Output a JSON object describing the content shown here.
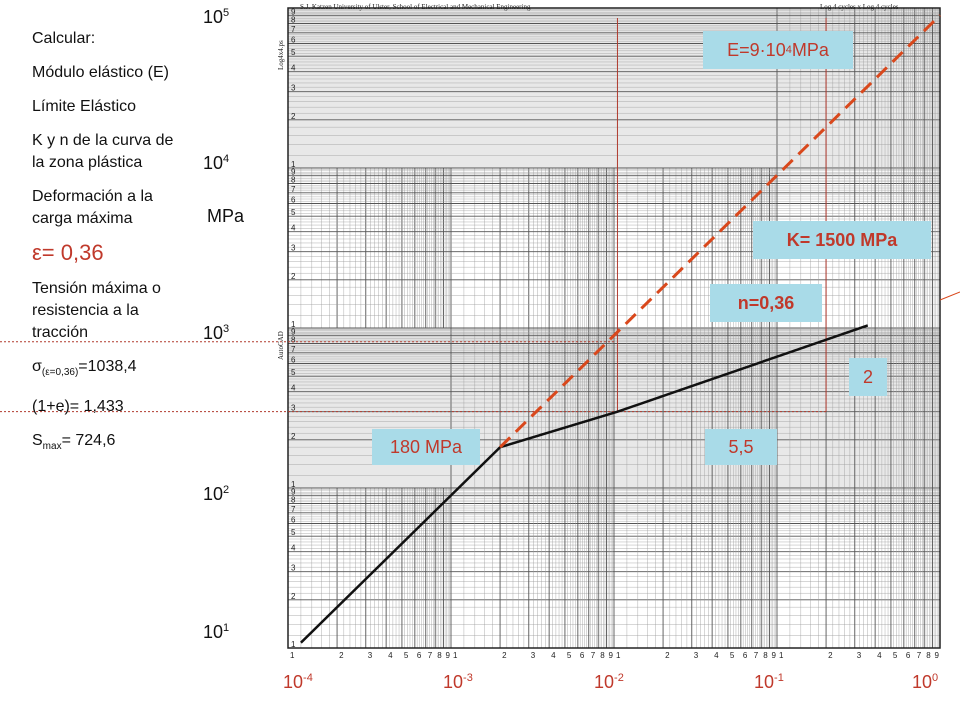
{
  "sidebar": {
    "title": "Calcular:",
    "item_modulus": "Módulo elástico (E)",
    "item_yield": "Límite Elástico",
    "item_kn": "K y n de la curva de la zona plástica",
    "item_strain": "Deformación a la carga máxima",
    "strain_value": "ε= 0,36",
    "item_tensile": "Tensión máxima o resistencia a la tracción",
    "sigma_prefix": "σ",
    "sigma_sub": "(ε=0,36)",
    "sigma_value": "=1038,4",
    "one_plus_e": "(1+e)= 1,433",
    "smax_prefix": "S",
    "smax_sub": "max",
    "smax_value": "= 724,6"
  },
  "axis": {
    "y_unit": "MPa",
    "y_ticks": [
      {
        "base": "10",
        "exp": "5"
      },
      {
        "base": "10",
        "exp": "4"
      },
      {
        "base": "10",
        "exp": "3"
      },
      {
        "base": "10",
        "exp": "2"
      },
      {
        "base": "10",
        "exp": "1"
      }
    ],
    "x_ticks": [
      {
        "base": "10",
        "exp": "-4"
      },
      {
        "base": "10",
        "exp": "-3"
      },
      {
        "base": "10",
        "exp": "-2"
      },
      {
        "base": "10",
        "exp": "-1"
      },
      {
        "base": "10",
        "exp": "0"
      }
    ]
  },
  "paper": {
    "header_left": "S.J. Katzen University of Ulster, School of Electrical and Mechanical Engineering",
    "header_right": "Log 4 cycles x Log 4 cycles",
    "side_text": "Log4x4.ps",
    "side_text2": "AutoCAD"
  },
  "annotations": {
    "modulus": {
      "text": "E=9·10",
      "sup": "4",
      "suffix": " MPa"
    },
    "k": "K= 1500 MPa",
    "n": "n=0,36",
    "yield": "180 MPa",
    "run": "5,5",
    "rise": "2"
  },
  "chart_data": {
    "type": "line",
    "scale": "log-log",
    "xlim": [
      0.0001,
      1
    ],
    "ylim": [
      10,
      100000
    ],
    "series": [
      {
        "style": "solid",
        "color": "#111111",
        "points": [
          [
            0.00012,
            10.8
          ],
          [
            0.002,
            180
          ],
          [
            0.0105,
            300
          ],
          [
            0.36,
            1038.4
          ]
        ]
      },
      {
        "style": "dashed",
        "color": "#d9481c",
        "points": [
          [
            0.002,
            180
          ],
          [
            1.0,
            90000
          ]
        ]
      }
    ],
    "guides": [
      {
        "type": "hline",
        "y": 300,
        "x_to": 0.2
      },
      {
        "type": "hline",
        "y": 820,
        "x_to": 0.01
      },
      {
        "type": "vline",
        "x": 0.0105,
        "y_to": 300
      },
      {
        "type": "vline",
        "x": 0.2,
        "y_to": 300
      }
    ]
  }
}
